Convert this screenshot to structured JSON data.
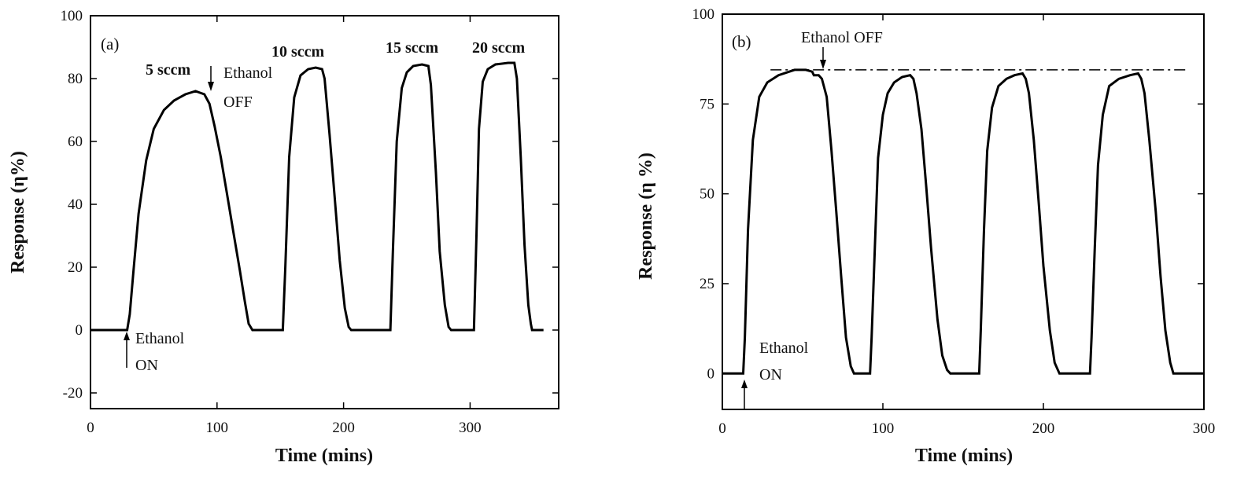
{
  "chart_data": [
    {
      "type": "line",
      "panel_label": "(a)",
      "xlabel": "Time (mins)",
      "ylabel": "Response (η%)",
      "xlim": [
        0,
        370
      ],
      "ylim": [
        -25,
        100
      ],
      "xticks": [
        0,
        100,
        200,
        300
      ],
      "yticks": [
        -20,
        0,
        20,
        40,
        60,
        80,
        100
      ],
      "grid": false,
      "series": [
        {
          "x": [
            0,
            29,
            31,
            34,
            38,
            44,
            50,
            58,
            66,
            75,
            83,
            90,
            94,
            98,
            103,
            108,
            113,
            118,
            122,
            125,
            128,
            152,
            154,
            157,
            161,
            166,
            172,
            178,
            183,
            185,
            189,
            193,
            197,
            201,
            204,
            206,
            237,
            239,
            242,
            246,
            250,
            255,
            262,
            267,
            269,
            273,
            276,
            280,
            283,
            285,
            303,
            305,
            307,
            310,
            314,
            320,
            330,
            335,
            337,
            340,
            343,
            346,
            348,
            349,
            358
          ],
          "y": [
            0,
            0,
            5,
            19,
            37,
            54,
            64,
            70,
            73,
            75,
            76,
            75,
            72,
            65,
            55,
            43,
            31,
            19,
            9,
            2,
            0,
            0,
            20,
            55,
            74,
            81,
            83,
            83.5,
            83,
            80,
            62,
            42,
            22,
            7,
            1,
            0,
            0,
            25,
            60,
            77,
            82,
            84,
            84.5,
            84,
            78,
            50,
            25,
            8,
            1,
            0,
            0,
            30,
            64,
            79,
            83,
            84.5,
            85,
            85,
            80,
            55,
            27,
            8,
            2,
            0,
            0
          ]
        }
      ],
      "annotations": [
        {
          "text": "5 sccm"
        },
        {
          "text": "10 sccm"
        },
        {
          "text": "15 sccm"
        },
        {
          "text": "20 sccm"
        },
        {
          "lines": [
            "Ethanol",
            "OFF"
          ]
        },
        {
          "lines": [
            "Ethanol",
            "ON"
          ]
        }
      ]
    },
    {
      "type": "line",
      "panel_label": "(b)",
      "xlabel": "Time (mins)",
      "ylabel": "Response (η %)",
      "xlim": [
        0,
        300
      ],
      "ylim": [
        -10,
        100
      ],
      "xticks": [
        0,
        100,
        200,
        300
      ],
      "yticks": [
        0,
        25,
        50,
        75,
        100
      ],
      "grid": false,
      "series": [
        {
          "x": [
            0,
            13,
            14,
            16,
            19,
            23,
            28,
            35,
            45,
            52,
            56,
            57,
            60,
            62,
            65,
            68,
            71,
            74,
            77,
            80,
            82,
            92,
            93,
            95,
            97,
            100,
            103,
            107,
            112,
            117,
            119,
            121,
            124,
            127,
            130,
            134,
            137,
            140,
            142,
            160,
            161,
            163,
            165,
            168,
            172,
            177,
            182,
            187,
            189,
            191,
            194,
            197,
            200,
            204,
            207,
            210,
            229,
            230,
            232,
            234,
            237,
            241,
            247,
            254,
            259,
            261,
            263,
            266,
            270,
            273,
            276,
            279,
            281,
            300
          ],
          "y": [
            0,
            0,
            10,
            40,
            65,
            77,
            81,
            83,
            84.5,
            84.5,
            84,
            83,
            83,
            82,
            77,
            62,
            45,
            27,
            10,
            2,
            0,
            0,
            10,
            35,
            60,
            72,
            78,
            81,
            82.5,
            83,
            82,
            78,
            68,
            52,
            35,
            15,
            5,
            1,
            0,
            0,
            12,
            40,
            62,
            74,
            80,
            82,
            83,
            83.5,
            82,
            78,
            65,
            48,
            30,
            12,
            3,
            0,
            0,
            10,
            35,
            58,
            72,
            80,
            82,
            83,
            83.5,
            82,
            78,
            65,
            45,
            27,
            12,
            3,
            0,
            0
          ]
        }
      ],
      "reference_line": {
        "y": 84.5,
        "x_range": [
          30,
          290
        ],
        "style": "dash-dot"
      },
      "annotations": [
        {
          "text": "Ethanol OFF"
        },
        {
          "lines": [
            "Ethanol",
            "ON"
          ]
        }
      ]
    }
  ]
}
